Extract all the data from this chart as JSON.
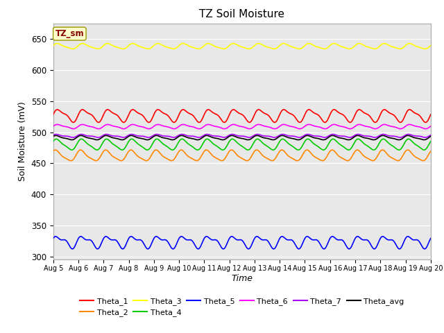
{
  "title": "TZ Soil Moisture",
  "xlabel": "Time",
  "ylabel": "Soil Moisture (mV)",
  "ylim": [
    295,
    675
  ],
  "xlim": [
    0,
    15
  ],
  "yticks": [
    300,
    350,
    400,
    450,
    500,
    550,
    600,
    650
  ],
  "xtick_labels": [
    "Aug 5",
    "Aug 6",
    "Aug 7",
    "Aug 8",
    "Aug 9",
    "Aug 10",
    "Aug 11",
    "Aug 12",
    "Aug 13",
    "Aug 14",
    "Aug 15",
    "Aug 16",
    "Aug 17",
    "Aug 18",
    "Aug 19",
    "Aug 20"
  ],
  "bg_color": "#e8e8e8",
  "series": [
    {
      "name": "Theta_1",
      "color": "#ff0000",
      "base": 527,
      "amp": 9,
      "freq": 1.0,
      "phase": 0.0,
      "amp2": 3,
      "freq2": 2.0,
      "phase2": 0.5
    },
    {
      "name": "Theta_2",
      "color": "#ff8800",
      "base": 462,
      "amp": 8,
      "freq": 1.0,
      "phase": 0.8,
      "amp2": 2,
      "freq2": 2.0,
      "phase2": 1.0
    },
    {
      "name": "Theta_3",
      "color": "#ffff00",
      "base": 638,
      "amp": 4,
      "freq": 1.0,
      "phase": 0.3,
      "amp2": 1,
      "freq2": 2.0,
      "phase2": 0.2
    },
    {
      "name": "Theta_4",
      "color": "#00cc00",
      "base": 480,
      "amp": 8,
      "freq": 1.0,
      "phase": 0.5,
      "amp2": 2,
      "freq2": 2.0,
      "phase2": 0.8
    },
    {
      "name": "Theta_5",
      "color": "#0000ff",
      "base": 324,
      "amp": 8,
      "freq": 1.0,
      "phase": 0.2,
      "amp2": 4,
      "freq2": 2.0,
      "phase2": 1.2
    },
    {
      "name": "Theta_6",
      "color": "#ff00ff",
      "base": 509,
      "amp": 3,
      "freq": 1.0,
      "phase": 0.1,
      "amp2": 1,
      "freq2": 2.0,
      "phase2": 0.3
    },
    {
      "name": "Theta_7",
      "color": "#aa00ff",
      "base": 494,
      "amp": 2,
      "freq": 1.0,
      "phase": 0.4,
      "amp2": 1,
      "freq2": 2.0,
      "phase2": 0.6
    },
    {
      "name": "Theta_avg",
      "color": "#000000",
      "base": 491,
      "amp": 3,
      "freq": 1.0,
      "phase": 0.6,
      "amp2": 1,
      "freq2": 2.0,
      "phase2": 0.9
    }
  ],
  "label_box": "TZ_sm",
  "label_box_color": "#ffffcc",
  "label_box_text_color": "#880000",
  "legend_order": [
    0,
    1,
    2,
    3,
    4,
    5,
    6,
    7
  ]
}
